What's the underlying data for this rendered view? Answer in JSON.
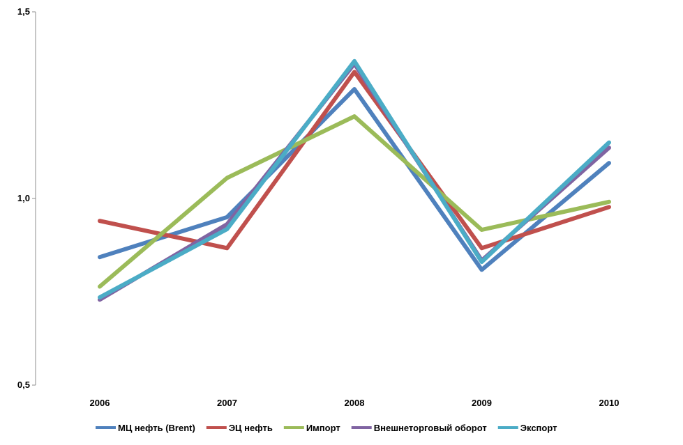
{
  "chart_data": {
    "type": "line",
    "title": "",
    "xlabel": "",
    "ylabel": "",
    "categories": [
      "2006",
      "2007",
      "2008",
      "2009",
      "2010"
    ],
    "ylim": [
      0.5,
      1.5
    ],
    "yticks": [
      0.5,
      1.0,
      1.5
    ],
    "ytick_labels": [
      "0,5",
      "1,0",
      "1,5"
    ],
    "grid": false,
    "legend_position": "bottom",
    "series": [
      {
        "name": "МЦ нефть (Brent)",
        "color": "#4F81BD",
        "values": [
          0.843,
          0.95,
          1.293,
          0.809,
          1.095
        ]
      },
      {
        "name": "ЭЦ нефть",
        "color": "#C0504D",
        "values": [
          0.94,
          0.867,
          1.339,
          0.867,
          0.977
        ]
      },
      {
        "name": "Импорт",
        "color": "#9BBB59",
        "values": [
          0.764,
          1.055,
          1.22,
          0.916,
          0.991
        ]
      },
      {
        "name": "Внешнеторговый оборот",
        "color": "#8064A2",
        "values": [
          0.729,
          0.931,
          1.361,
          0.834,
          1.136
        ]
      },
      {
        "name": "Экспорт",
        "color": "#4BACC6",
        "values": [
          0.735,
          0.918,
          1.368,
          0.83,
          1.15
        ]
      }
    ]
  }
}
